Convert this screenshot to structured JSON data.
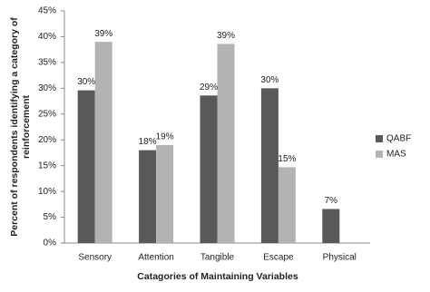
{
  "chart_data": {
    "type": "bar",
    "xlabel": "Catagories of Maintaining Variables",
    "ylabel": [
      "Percent of respondents identifying a category of",
      "reinforcement"
    ],
    "categories": [
      "Sensory",
      "Attention",
      "Tangible",
      "Escape",
      "Physical"
    ],
    "series": [
      {
        "name": "QABF",
        "color": "#595959",
        "values": [
          29.6,
          18,
          28.6,
          30,
          6.6
        ],
        "value_labels": [
          "30%",
          "18%",
          "29%",
          "30%",
          "7%"
        ]
      },
      {
        "name": "MAS",
        "color": "#b3b3b3",
        "values": [
          39,
          19,
          38.6,
          14.7,
          null
        ],
        "value_labels": [
          "39%",
          "19%",
          "39%",
          "15%",
          null
        ]
      }
    ],
    "ylim": [
      0,
      45
    ],
    "yticks": [
      {
        "value": 0,
        "label": "0%"
      },
      {
        "value": 5,
        "label": "5%"
      },
      {
        "value": 10,
        "label": "10%"
      },
      {
        "value": 15,
        "label": "15%"
      },
      {
        "value": 20,
        "label": "20%"
      },
      {
        "value": 25,
        "label": "25%"
      },
      {
        "value": 30,
        "label": "30%"
      },
      {
        "value": 35,
        "label": "35%"
      },
      {
        "value": 40,
        "label": "40%"
      },
      {
        "value": 45,
        "label": "45%"
      }
    ],
    "grid": false,
    "legend": "right"
  }
}
